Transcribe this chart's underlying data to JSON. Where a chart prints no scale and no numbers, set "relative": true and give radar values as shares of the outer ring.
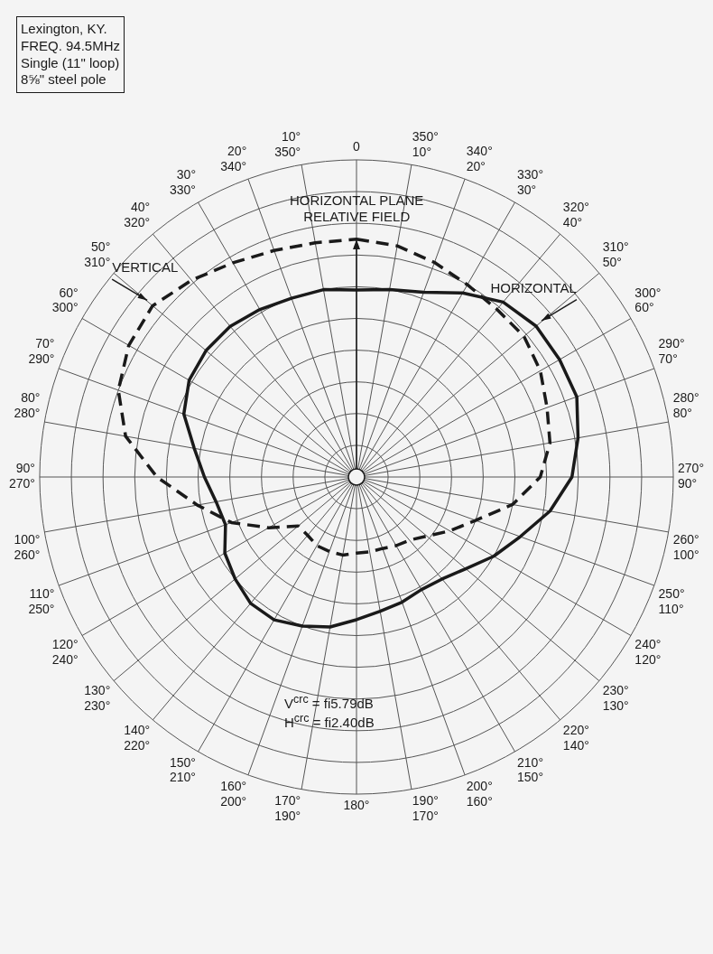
{
  "chart_data": {
    "type": "radar",
    "relative": true,
    "grid": true,
    "legend": false,
    "marker": "none",
    "categories": [
      "0",
      "350°\n10°",
      "340°\n20°",
      "330°\n30°",
      "320°\n40°",
      "310°\n50°",
      "300°\n60°",
      "290°\n70°",
      "280°\n80°",
      "270°\n90°",
      "260°\n100°",
      "250°\n110°",
      "240°\n120°",
      "230°\n130°",
      "220°\n140°",
      "210°\n150°",
      "200°\n160°",
      "190°\n170°",
      "180°",
      "170°\n190°",
      "160°\n200°",
      "150°\n210°",
      "140°\n220°",
      "130°\n230°",
      "120°\n240°",
      "110°\n250°",
      "100°\n260°",
      "90°\n270°",
      "80°\n280°",
      "70°\n290°",
      "60°\n300°",
      "50°\n310°",
      "40°\n320°",
      "30°\n330°",
      "20°\n340°",
      "10°\n350°"
    ],
    "series": [
      {
        "name": "HORIZONTAL",
        "color": "#1a1a1a",
        "line_style": "solid",
        "values": [
          0.59,
          0.6,
          0.62,
          0.67,
          0.72,
          0.74,
          0.74,
          0.74,
          0.71,
          0.68,
          0.62,
          0.55,
          0.5,
          0.45,
          0.42,
          0.41,
          0.42,
          0.43,
          0.45,
          0.48,
          0.5,
          0.52,
          0.52,
          0.5,
          0.48,
          0.44,
          0.45,
          0.48,
          0.52,
          0.58,
          0.61,
          0.62,
          0.62,
          0.61,
          0.6,
          0.6
        ]
      },
      {
        "name": "VERTICAL",
        "color": "#1a1a1a",
        "line_style": "dashed",
        "values": [
          0.75,
          0.74,
          0.72,
          0.7,
          0.69,
          0.69,
          0.67,
          0.64,
          0.62,
          0.58,
          0.5,
          0.4,
          0.34,
          0.29,
          0.26,
          0.25,
          0.24,
          0.24,
          0.24,
          0.25,
          0.25,
          0.25,
          0.24,
          0.24,
          0.32,
          0.42,
          0.51,
          0.63,
          0.74,
          0.8,
          0.83,
          0.84,
          0.81,
          0.78,
          0.76,
          0.75
        ]
      }
    ],
    "annotations": [
      "Lexington, KY.\nFREQ. 94.5MHz\nSingle (11\" loop)\n8⅝\" steel pole",
      "HORIZONTAL PLANE\nRELATIVE FIELD",
      "V$^{crc}$ = fi5.79dB\nH$^{crc}$ = fi2.40dB"
    ]
  }
}
